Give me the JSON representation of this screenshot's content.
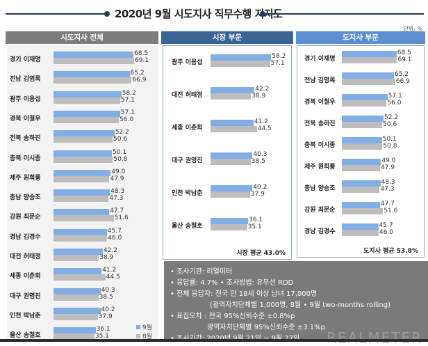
{
  "page": {
    "title": "2020년 9월 시도지사 직무수행 지지도",
    "unit": "단위: %"
  },
  "panels": {
    "all": {
      "label": "시도지사 전체"
    },
    "city": {
      "label": "시장 부문",
      "average": "시장 평균 43.0%"
    },
    "province": {
      "label": "도지사 부문",
      "average": "도지사 평균 53.8%"
    }
  },
  "legend": {
    "sep": "9월",
    "aug": "8월"
  },
  "notes": [
    "• 조사기관: 리얼미터",
    "• 응답률: 4.7% • 조사방법: 유무선 RDD",
    "• 전체 응답자: 전국 만 18세 이상 남녀 17,000명",
    "(광역자치단체별 1,000명, 8월 • 9월 two-months rolling)",
    "• 표집오차 : 전국 95%신뢰수준 ±0.8%p",
    "광역자치단체별 95%신뢰수준 ±3.1%p",
    "• 조사기간: 2020년 9월 21일 ~ 9월 27일"
  ],
  "watermark": "REALMETER",
  "colors": {
    "sep": "#82aee6",
    "aug": "#bdbdbd",
    "city_header": "#3a6496",
    "province_header": "#5b8fd1",
    "all_header": "#7d7d7d"
  },
  "chart_data": [
    {
      "type": "bar",
      "title": "시도지사 전체",
      "orientation": "horizontal",
      "categories": [
        "경기 이재명",
        "전남 김영록",
        "광주 이용섭",
        "경북 이철우",
        "전북 송하진",
        "충북 이시종",
        "제주 원희룡",
        "충남 양승조",
        "강원 최문순",
        "경남 김경수",
        "대전 허태정",
        "세종 이춘희",
        "대구 권영진",
        "인천 박남춘",
        "울산 송철호"
      ],
      "series": [
        {
          "name": "9월",
          "values": [
            68.5,
            65.2,
            58.2,
            57.1,
            52.2,
            50.1,
            49.0,
            48.3,
            47.7,
            45.7,
            42.2,
            41.2,
            40.3,
            40.2,
            36.1
          ]
        },
        {
          "name": "8월",
          "values": [
            69.1,
            66.9,
            57.1,
            56.0,
            50.6,
            50.8,
            47.9,
            47.3,
            51.6,
            46.0,
            38.9,
            44.5,
            38.5,
            37.9,
            35.1
          ]
        }
      ],
      "legend": "bottom-right",
      "unit": "%"
    },
    {
      "type": "bar",
      "title": "시장 부문",
      "orientation": "horizontal",
      "categories": [
        "광주 이용섭",
        "대전 허태정",
        "세종 이춘희",
        "대구 권영진",
        "인천 박남춘",
        "울산 송철호"
      ],
      "series": [
        {
          "name": "9월",
          "values": [
            58.2,
            42.2,
            41.2,
            40.3,
            40.2,
            36.1
          ]
        },
        {
          "name": "8월",
          "values": [
            57.1,
            38.9,
            44.5,
            38.5,
            37.9,
            35.1
          ]
        }
      ],
      "annotation": "시장 평균 43.0%",
      "unit": "%"
    },
    {
      "type": "bar",
      "title": "도지사 부문",
      "orientation": "horizontal",
      "categories": [
        "경기 이재명",
        "전남 김영록",
        "경북 이철우",
        "전북 송하진",
        "충북 이시종",
        "제주 원희룡",
        "충남 양승조",
        "강원 최문순",
        "경남 김경수"
      ],
      "series": [
        {
          "name": "9월",
          "values": [
            68.5,
            65.2,
            57.1,
            52.2,
            50.1,
            49.0,
            48.3,
            47.7,
            45.7
          ]
        },
        {
          "name": "8월",
          "values": [
            69.1,
            66.9,
            56.0,
            50.6,
            50.8,
            47.9,
            47.3,
            51.6,
            46.0
          ]
        }
      ],
      "annotation": "도지사 평균 53.8%",
      "unit": "%"
    }
  ]
}
